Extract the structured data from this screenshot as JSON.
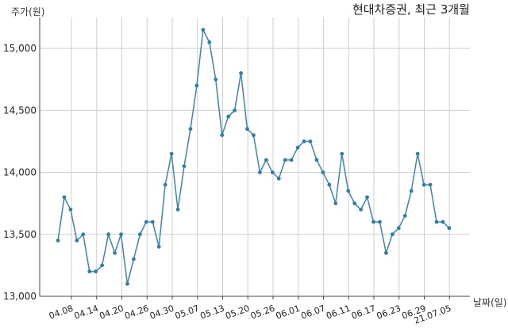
{
  "chart_data": {
    "type": "line",
    "title": "현대차증권, 최근 3개월",
    "ylabel": "주가(원)",
    "xlabel": "날짜(일)",
    "ylim": [
      13000,
      15250
    ],
    "yticks": [
      13000,
      13500,
      14000,
      14500,
      15000
    ],
    "ytick_labels": [
      "13,000",
      "13,500",
      "14,000",
      "14,500",
      "15,000"
    ],
    "grid": true,
    "x_ticks": [
      "04.08",
      "04.14",
      "04.20",
      "04.26",
      "04.30",
      "05.07",
      "05.13",
      "05.20",
      "05.26",
      "06.01",
      "06.07",
      "06.11",
      "06.17",
      "06.23",
      "06.29",
      "21.07.05"
    ],
    "series": [
      {
        "color": "#3a86b1",
        "values": [
          13450,
          13800,
          13700,
          13450,
          13500,
          13200,
          13200,
          13250,
          13500,
          13350,
          13500,
          13100,
          13300,
          13500,
          13600,
          13600,
          13400,
          13900,
          14150,
          13700,
          14050,
          14350,
          14700,
          15150,
          15050,
          14750,
          14300,
          14450,
          14500,
          14800,
          14350,
          14300,
          14000,
          14100,
          14000,
          13950,
          14100,
          14100,
          14200,
          14250,
          14250,
          14100,
          14000,
          13900,
          13750,
          14150,
          13850,
          13750,
          13700,
          13800,
          13600,
          13600,
          13350,
          13500,
          13550,
          13650,
          13850,
          14150,
          13900,
          13900,
          13600,
          13600,
          13550
        ]
      }
    ]
  }
}
